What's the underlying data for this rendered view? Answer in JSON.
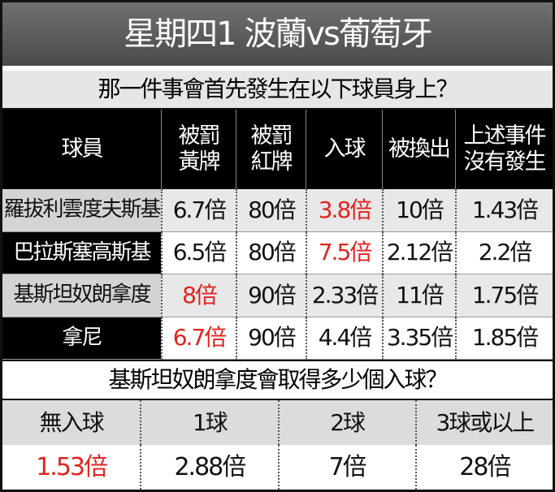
{
  "header": {
    "title": "星期四1  波蘭vs葡萄牙"
  },
  "section1": {
    "question": "那一件事會首先發生在以下球員身上？",
    "columns": [
      "球員",
      "被罰\n黃牌",
      "被罰\n紅牌",
      "入球",
      "被換出",
      "上述事件\n沒有發生"
    ],
    "highlight_color": "#e02420",
    "rows": [
      {
        "cells": [
          "羅拔利雲度夫斯基",
          "6.7倍",
          "80倍",
          "3.8倍",
          "10倍",
          "1.43倍"
        ],
        "highlight": 3
      },
      {
        "cells": [
          "巴拉斯塞高斯基",
          "6.5倍",
          "80倍",
          "7.5倍",
          "2.12倍",
          "2.2倍"
        ],
        "highlight": 3
      },
      {
        "cells": [
          "基斯坦奴朗拿度",
          "8倍",
          "90倍",
          "2.33倍",
          "11倍",
          "1.75倍"
        ],
        "highlight": 1
      },
      {
        "cells": [
          "拿尼",
          "6.7倍",
          "90倍",
          "4.4倍",
          "3.35倍",
          "1.85倍"
        ],
        "highlight": 1
      }
    ]
  },
  "section2": {
    "question": "基斯坦奴朗拿度會取得多少個入球？",
    "columns": [
      "無入球",
      "1球",
      "2球",
      "3球或以上"
    ],
    "values": [
      "1.53倍",
      "2.88倍",
      "7倍",
      "28倍"
    ],
    "highlight": 0
  }
}
